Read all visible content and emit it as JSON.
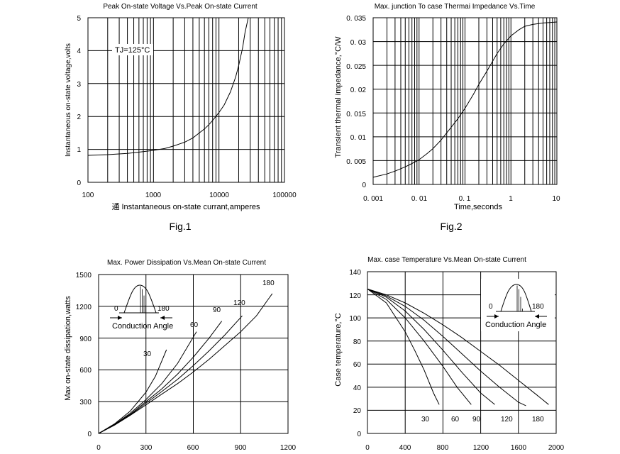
{
  "figure_labels": [
    "Fig.1",
    "Fig.2"
  ],
  "chart_data": [
    {
      "id": "fig1",
      "type": "line",
      "title": "Peak On-state Voltage Vs.Peak On-state Current",
      "xlabel": "通 Instantaneous on-state currant,amperes",
      "ylabel": "Instantaneous on-state voltage,volts",
      "xscale": "log",
      "xlim": [
        100,
        100000
      ],
      "ylim": [
        0,
        5
      ],
      "xticks": [
        "100",
        "1000",
        "10000",
        "100000"
      ],
      "yticks": [
        "0",
        "1",
        "2",
        "3",
        "4",
        "5"
      ],
      "grid": true,
      "annotation": "TJ=125°C",
      "series": [
        {
          "x": [
            100,
            200,
            400,
            700,
            1000,
            1500,
            2000,
            3000,
            4000,
            5000,
            6000,
            7000,
            8000,
            10000,
            12000,
            15000,
            18000,
            20000,
            23000,
            25000,
            28000
          ],
          "y": [
            0.82,
            0.84,
            0.88,
            0.93,
            0.97,
            1.03,
            1.1,
            1.22,
            1.35,
            1.5,
            1.62,
            1.75,
            1.88,
            2.12,
            2.35,
            2.75,
            3.2,
            3.55,
            4.1,
            4.55,
            5.0
          ]
        }
      ]
    },
    {
      "id": "fig2",
      "type": "line",
      "title": "Max. junction To case Thermai Impedance Vs.Time",
      "xlabel": "Time,seconds",
      "ylabel": "Transient thermal impedance,°C/W",
      "xscale": "log",
      "xlim": [
        0.001,
        10
      ],
      "ylim": [
        0,
        0.035
      ],
      "xticks": [
        "0. 001",
        "0. 01",
        "0. 1",
        "1",
        "10"
      ],
      "yticks": [
        "0",
        "0. 005",
        "0. 01",
        "0. 015",
        "0. 02",
        "0. 025",
        "0. 03",
        "0. 035"
      ],
      "grid": true,
      "series": [
        {
          "x": [
            0.001,
            0.002,
            0.003,
            0.005,
            0.007,
            0.01,
            0.015,
            0.02,
            0.03,
            0.05,
            0.07,
            0.1,
            0.15,
            0.2,
            0.3,
            0.5,
            0.7,
            1,
            1.5,
            2,
            3,
            5,
            7,
            10
          ],
          "y": [
            0.0015,
            0.0022,
            0.0028,
            0.0037,
            0.0044,
            0.0052,
            0.0065,
            0.0075,
            0.0093,
            0.012,
            0.0138,
            0.016,
            0.0188,
            0.021,
            0.0238,
            0.0275,
            0.0295,
            0.0312,
            0.0325,
            0.0332,
            0.0336,
            0.0339,
            0.034,
            0.0341
          ]
        }
      ]
    },
    {
      "id": "fig3",
      "type": "line",
      "title": "Max. Power Dissipation Vs.Mean On-state Current",
      "xlabel": "",
      "ylabel": "Max on-state dissipation,watts",
      "xlim": [
        0,
        1200
      ],
      "ylim": [
        0,
        1500
      ],
      "xticks": [
        "0",
        "300",
        "600",
        "900",
        "1200"
      ],
      "yticks": [
        "0",
        "300",
        "600",
        "900",
        "1200",
        "1500"
      ],
      "grid": true,
      "inset_labels": {
        "left": "0",
        "right": "180",
        "caption": "Conduction Angle"
      },
      "series": [
        {
          "name": "30",
          "x": [
            0,
            100,
            200,
            300,
            360,
            430
          ],
          "y": [
            0,
            90,
            210,
            390,
            540,
            790
          ]
        },
        {
          "name": "60",
          "x": [
            0,
            100,
            200,
            300,
            400,
            500,
            620
          ],
          "y": [
            0,
            85,
            190,
            320,
            470,
            660,
            960
          ]
        },
        {
          "name": "90",
          "x": [
            0,
            100,
            200,
            300,
            400,
            500,
            600,
            700,
            780
          ],
          "y": [
            0,
            82,
            180,
            300,
            420,
            560,
            720,
            900,
            1060
          ]
        },
        {
          "name": "120",
          "x": [
            0,
            100,
            200,
            300,
            400,
            500,
            600,
            700,
            800,
            910
          ],
          "y": [
            0,
            80,
            175,
            285,
            395,
            510,
            640,
            780,
            930,
            1110
          ]
        },
        {
          "name": "180",
          "x": [
            0,
            100,
            200,
            300,
            400,
            500,
            600,
            700,
            800,
            900,
            1000,
            1100
          ],
          "y": [
            0,
            78,
            170,
            270,
            370,
            470,
            580,
            700,
            830,
            960,
            1110,
            1320
          ]
        }
      ]
    },
    {
      "id": "fig4",
      "type": "line",
      "title": "Max. case Temperature Vs.Mean On-state Current",
      "xlabel": "",
      "ylabel": "Case temperature,°C",
      "xlim": [
        0,
        2000
      ],
      "ylim": [
        0,
        140
      ],
      "xticks": [
        "0",
        "400",
        "800",
        "1200",
        "1600",
        "2000"
      ],
      "yticks": [
        "0",
        "20",
        "40",
        "60",
        "80",
        "100",
        "120",
        "140"
      ],
      "grid": true,
      "inset_labels": {
        "left": "0",
        "right": "180",
        "caption": "Conduction Angle"
      },
      "series": [
        {
          "name": "30",
          "x": [
            0,
            200,
            400,
            500,
            600,
            700,
            760
          ],
          "y": [
            125,
            113,
            88,
            72,
            55,
            35,
            25
          ]
        },
        {
          "name": "60",
          "x": [
            0,
            200,
            400,
            600,
            800,
            950,
            1100
          ],
          "y": [
            125,
            116,
            100,
            80,
            58,
            40,
            25
          ]
        },
        {
          "name": "90",
          "x": [
            0,
            200,
            400,
            600,
            800,
            1000,
            1200,
            1350
          ],
          "y": [
            125,
            118,
            106,
            90,
            72,
            53,
            35,
            25
          ]
        },
        {
          "name": "120",
          "x": [
            0,
            200,
            400,
            600,
            800,
            1000,
            1200,
            1400,
            1600,
            1680
          ],
          "y": [
            125,
            119,
            110,
            98,
            84,
            69,
            54,
            40,
            27,
            24
          ]
        },
        {
          "name": "180",
          "x": [
            0,
            200,
            400,
            600,
            800,
            1000,
            1200,
            1400,
            1600,
            1800,
            1920
          ],
          "y": [
            125,
            120,
            113,
            104,
            94,
            83,
            71,
            59,
            46,
            33,
            25
          ]
        }
      ]
    }
  ]
}
